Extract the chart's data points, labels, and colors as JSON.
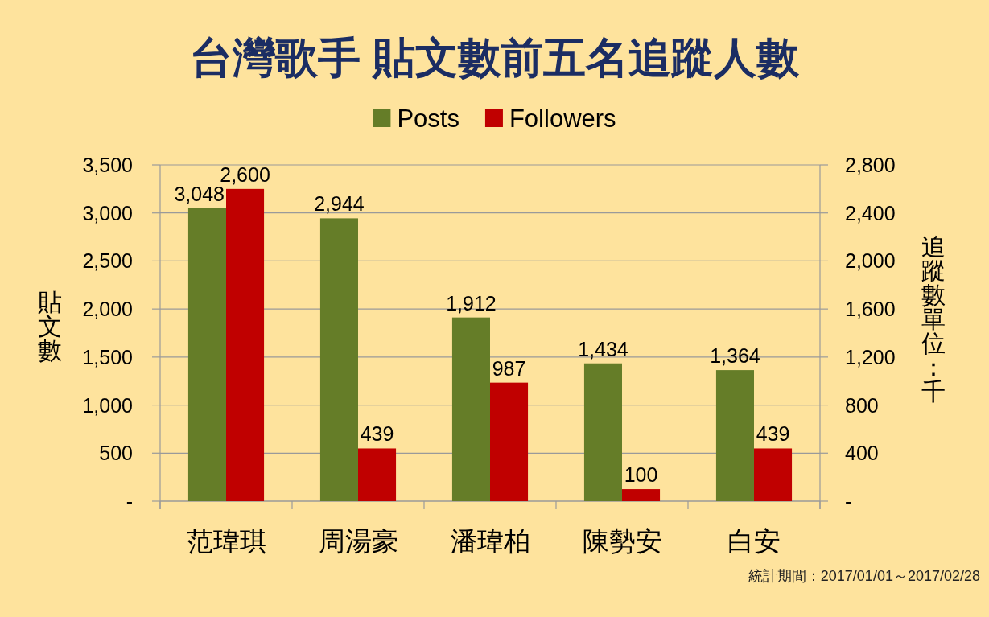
{
  "chart_data": {
    "type": "bar",
    "title": "台灣歌手 貼文數前五名追蹤人數",
    "categories": [
      "范瑋琪",
      "周湯豪",
      "潘瑋柏",
      "陳勢安",
      "白安"
    ],
    "series": [
      {
        "name": "Posts",
        "color": "#657D28",
        "values": [
          3048,
          2944,
          1912,
          1434,
          1364
        ],
        "value_labels": [
          "3,048",
          "2,944",
          "1,912",
          "1,434",
          "1,364"
        ]
      },
      {
        "name": "Followers",
        "color": "#C00000",
        "axis": "y2",
        "values": [
          2600,
          439,
          987,
          100,
          439
        ],
        "value_labels": [
          "2,600",
          "439",
          "987",
          "100",
          "439"
        ]
      }
    ],
    "ylabel": "貼文數",
    "y2label": "追蹤數單位：千",
    "ylim": [
      0,
      3500
    ],
    "yticks": [
      {
        "value": 0,
        "label": "-"
      },
      500,
      {
        "value": 1000,
        "label": "1,000"
      },
      {
        "value": 1500,
        "label": "1,500"
      },
      {
        "value": 2000,
        "label": "2,000"
      },
      {
        "value": 2500,
        "label": "2,500"
      },
      {
        "value": 3000,
        "label": "3,000"
      },
      {
        "value": 3500,
        "label": "3,500"
      }
    ],
    "y2lim": [
      0,
      2800
    ],
    "y2ticks": [
      {
        "value": 0,
        "label": "-"
      },
      400,
      800,
      {
        "value": 1200,
        "label": "1,200"
      },
      {
        "value": 1600,
        "label": "1,600"
      },
      {
        "value": 2000,
        "label": "2,000"
      },
      {
        "value": 2400,
        "label": "2,400"
      },
      {
        "value": 2800,
        "label": "2,800"
      }
    ],
    "grid": "y",
    "legend": "top",
    "annotations": [
      "統計期間：2017/01/01～2017/02/28"
    ]
  }
}
